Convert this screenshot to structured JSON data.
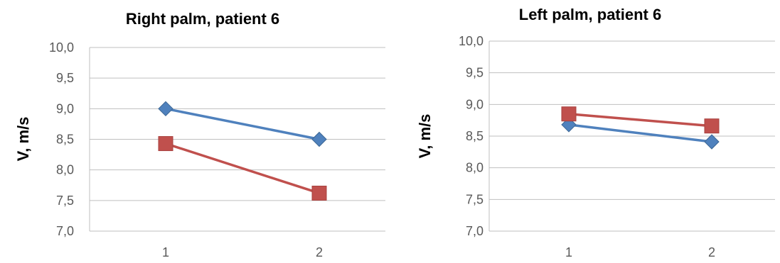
{
  "chart_data": [
    {
      "type": "line",
      "title": "Right palm, patient 6",
      "xlabel": "",
      "ylabel": "V, m/s",
      "categories": [
        "1",
        "2"
      ],
      "ylim": [
        7.0,
        10.0
      ],
      "yticks": [
        "7,0",
        "7,5",
        "8,0",
        "8,5",
        "9,0",
        "9,5",
        "10,0"
      ],
      "grid": true,
      "series": [
        {
          "values": [
            9.0,
            8.5
          ],
          "color": "#4f81bd",
          "marker": "diamond"
        },
        {
          "values": [
            8.43,
            7.62
          ],
          "color": "#c0504d",
          "marker": "square"
        }
      ]
    },
    {
      "type": "line",
      "title": "Left palm, patient 6",
      "xlabel": "",
      "ylabel": "V, m/s",
      "categories": [
        "1",
        "2"
      ],
      "ylim": [
        7.0,
        10.0
      ],
      "yticks": [
        "7,0",
        "7,5",
        "8,0",
        "8,5",
        "9,0",
        "9,5",
        "10,0"
      ],
      "grid": true,
      "series": [
        {
          "values": [
            8.68,
            8.41
          ],
          "color": "#4f81bd",
          "marker": "diamond"
        },
        {
          "values": [
            8.85,
            8.66
          ],
          "color": "#c0504d",
          "marker": "square"
        }
      ]
    }
  ]
}
